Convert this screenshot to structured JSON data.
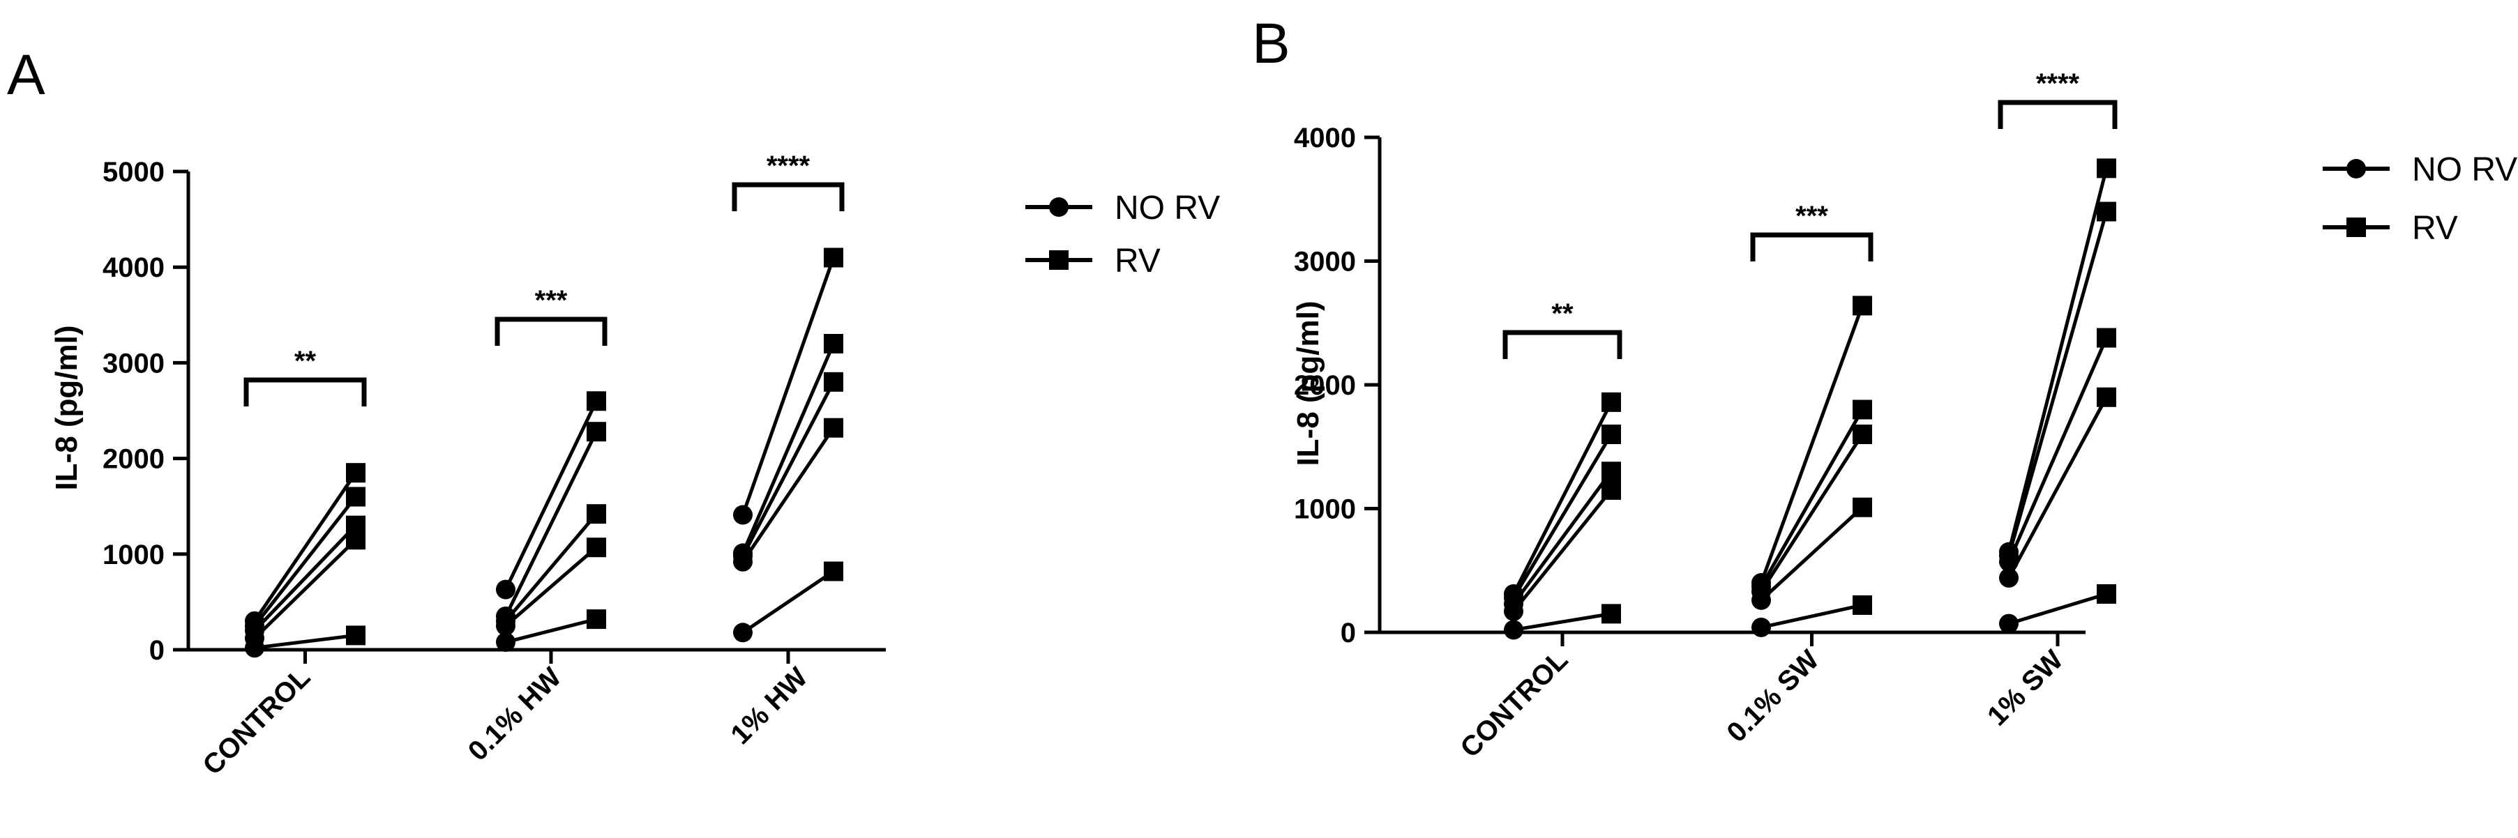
{
  "panels": [
    {
      "letter": "A",
      "legend": [
        {
          "label": "NO RV",
          "marker": "circle"
        },
        {
          "label": "RV",
          "marker": "square"
        }
      ]
    },
    {
      "letter": "B",
      "legend": [
        {
          "label": "NO RV",
          "marker": "circle"
        },
        {
          "label": "RV",
          "marker": "square"
        }
      ]
    }
  ],
  "chart_data": [
    {
      "type": "scatter",
      "title": "",
      "xlabel": "",
      "ylabel": "IL-8 (pg/ml)",
      "ylim": [
        0,
        5000
      ],
      "yticks": [
        0,
        1000,
        2000,
        3000,
        4000,
        5000
      ],
      "categories": [
        "CONTROL",
        "0.1% HW",
        "1% HW"
      ],
      "conditions": [
        "NO RV",
        "RV"
      ],
      "pairs": [
        [
          [
            20,
            150
          ],
          [
            120,
            1150
          ],
          [
            200,
            1300
          ],
          [
            250,
            1600
          ],
          [
            300,
            1850
          ]
        ],
        [
          [
            80,
            320
          ],
          [
            250,
            1070
          ],
          [
            300,
            1420
          ],
          [
            350,
            2280
          ],
          [
            630,
            2600
          ]
        ],
        [
          [
            180,
            820
          ],
          [
            920,
            2320
          ],
          [
            980,
            2800
          ],
          [
            1010,
            3200
          ],
          [
            1410,
            4100
          ]
        ]
      ],
      "significance": [
        "**",
        "***",
        "****"
      ]
    },
    {
      "type": "scatter",
      "title": "",
      "xlabel": "",
      "ylabel": "IL-8 (pg/ml)",
      "ylim": [
        0,
        4000
      ],
      "yticks": [
        0,
        1000,
        2000,
        3000,
        4000
      ],
      "categories": [
        "CONTROL",
        "0.1% SW",
        "1% SW"
      ],
      "conditions": [
        "NO RV",
        "RV"
      ],
      "pairs": [
        [
          [
            20,
            150
          ],
          [
            170,
            1150
          ],
          [
            230,
            1300
          ],
          [
            280,
            1600
          ],
          [
            310,
            1860
          ]
        ],
        [
          [
            40,
            220
          ],
          [
            260,
            1010
          ],
          [
            330,
            1600
          ],
          [
            370,
            1800
          ],
          [
            400,
            2640
          ]
        ],
        [
          [
            70,
            310
          ],
          [
            440,
            1900
          ],
          [
            570,
            2380
          ],
          [
            620,
            3400
          ],
          [
            650,
            3750
          ]
        ]
      ],
      "significance": [
        "**",
        "***",
        "****"
      ]
    }
  ]
}
